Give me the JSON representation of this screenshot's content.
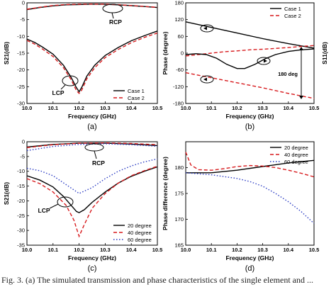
{
  "chart_data": [
    {
      "id": "a",
      "type": "line",
      "panel_label": "(a)",
      "xlabel": "Frequency (GHz)",
      "ylabel": "S21(dB)",
      "xlim": [
        10.0,
        10.5
      ],
      "ylim": [
        -30,
        0
      ],
      "xticks": [
        10.0,
        10.1,
        10.2,
        10.3,
        10.4,
        10.5
      ],
      "xtick_labels": [
        "10.0",
        "10.1",
        "10.2",
        "10.3",
        "10.4",
        "10.5"
      ],
      "yticks": [
        -30,
        -25,
        -20,
        -15,
        -10,
        -5,
        0
      ],
      "ytick_labels": [
        "-30",
        "-25",
        "-20",
        "-15",
        "-10",
        "-5",
        "0"
      ],
      "legend": {
        "position": "bottom-right"
      },
      "annotations": [
        "RCP",
        "LCP"
      ],
      "series": [
        {
          "name": "Case 1",
          "color": "#000000",
          "dash": "solid",
          "group": "RCP",
          "x": [
            10.0,
            10.05,
            10.1,
            10.15,
            10.2,
            10.25,
            10.3,
            10.35,
            10.4,
            10.45,
            10.5
          ],
          "y": [
            -2.0,
            -1.4,
            -0.9,
            -0.6,
            -0.5,
            -0.4,
            -0.45,
            -0.6,
            -0.85,
            -1.1,
            -1.4
          ]
        },
        {
          "name": "Case 2",
          "color": "#d7191c",
          "dash": "dash",
          "group": "RCP",
          "x": [
            10.0,
            10.05,
            10.1,
            10.15,
            10.2,
            10.25,
            10.3,
            10.35,
            10.4,
            10.45,
            10.5
          ],
          "y": [
            -1.9,
            -1.3,
            -0.8,
            -0.5,
            -0.4,
            -0.35,
            -0.4,
            -0.55,
            -0.8,
            -1.05,
            -1.35
          ]
        },
        {
          "name": "Case 1",
          "color": "#000000",
          "dash": "solid",
          "group": "LCP",
          "x": [
            10.0,
            10.03,
            10.06,
            10.1,
            10.14,
            10.17,
            10.19,
            10.2,
            10.21,
            10.23,
            10.26,
            10.3,
            10.35,
            10.4,
            10.45,
            10.5
          ],
          "y": [
            -10.8,
            -11.8,
            -13.2,
            -15.3,
            -18.6,
            -22.3,
            -25.3,
            -26.5,
            -25.2,
            -21.8,
            -18.6,
            -15.7,
            -13.3,
            -11.3,
            -9.8,
            -8.4
          ]
        },
        {
          "name": "Case 2",
          "color": "#d7191c",
          "dash": "dash",
          "group": "LCP",
          "x": [
            10.0,
            10.03,
            10.06,
            10.1,
            10.14,
            10.17,
            10.19,
            10.2,
            10.21,
            10.23,
            10.26,
            10.3,
            10.35,
            10.4,
            10.45,
            10.5
          ],
          "y": [
            -11.2,
            -12.3,
            -13.8,
            -16.0,
            -19.3,
            -23.0,
            -26.2,
            -27.0,
            -26.0,
            -22.6,
            -19.3,
            -16.3,
            -13.9,
            -11.9,
            -10.3,
            -9.0
          ]
        }
      ]
    },
    {
      "id": "b",
      "type": "line",
      "panel_label": "(b)",
      "xlabel": "Frequency (GHz)",
      "ylabel": "Phase (degree)",
      "ylabel_right": "S11(dB)",
      "xlim": [
        10.0,
        10.5
      ],
      "ylim": [
        -180,
        180
      ],
      "xticks": [
        10.0,
        10.1,
        10.2,
        10.3,
        10.4,
        10.5
      ],
      "xtick_labels": [
        "10.0",
        "10.1",
        "10.2",
        "10.3",
        "10.4",
        "10.5"
      ],
      "yticks": [
        -180,
        -120,
        -60,
        0,
        60,
        120,
        180
      ],
      "ytick_labels": [
        "-180",
        "-120",
        "-60",
        "0",
        "60",
        "120",
        "180"
      ],
      "legend": {
        "position": "top-right"
      },
      "annotations": [
        "180 deg"
      ],
      "series": [
        {
          "name": "Case 1",
          "color": "#000000",
          "dash": "solid",
          "group": "upper phase",
          "x": [
            10.0,
            10.1,
            10.2,
            10.3,
            10.4,
            10.5
          ],
          "y": [
            112,
            92,
            72,
            52,
            34,
            18
          ]
        },
        {
          "name": "Case 2",
          "color": "#d7191c",
          "dash": "dash",
          "group": "upper phase",
          "x": [
            10.0,
            10.05,
            10.1,
            10.15,
            10.2,
            10.25,
            10.3,
            10.35,
            10.4,
            10.45,
            10.5
          ],
          "y": [
            -10,
            -5,
            0,
            5,
            8,
            12,
            14,
            17,
            20,
            24,
            27
          ]
        },
        {
          "name": "Case 1",
          "color": "#000000",
          "dash": "solid",
          "group": "S11",
          "x": [
            10.0,
            10.04,
            10.08,
            10.12,
            10.16,
            10.2,
            10.23,
            10.27,
            10.31,
            10.35,
            10.4,
            10.45,
            10.5
          ],
          "y": [
            -5,
            -2,
            -5,
            -18,
            -40,
            -55,
            -55,
            -40,
            -20,
            -5,
            6,
            12,
            15
          ]
        },
        {
          "name": "Case 2",
          "color": "#d7191c",
          "dash": "dash",
          "group": "lower phase",
          "x": [
            10.0,
            10.1,
            10.2,
            10.3,
            10.4,
            10.5
          ],
          "y": [
            -70,
            -88,
            -106,
            -124,
            -144,
            -162
          ]
        }
      ]
    },
    {
      "id": "c",
      "type": "line",
      "panel_label": "(c)",
      "xlabel": "Frequency (GHz)",
      "ylabel": "S21(dB)",
      "xlim": [
        10.0,
        10.5
      ],
      "ylim": [
        -35,
        0
      ],
      "xticks": [
        10.0,
        10.1,
        10.2,
        10.3,
        10.4,
        10.5
      ],
      "xtick_labels": [
        "10.0",
        "10.1",
        "10.2",
        "10.3",
        "10.4",
        "10.5"
      ],
      "yticks": [
        -35,
        -30,
        -25,
        -20,
        -15,
        -10,
        -5,
        0
      ],
      "ytick_labels": [
        "-35",
        "-30",
        "-25",
        "-20",
        "-15",
        "-10",
        "-5",
        "0"
      ],
      "legend": {
        "position": "bottom-right"
      },
      "annotations": [
        "RCP",
        "LCP"
      ],
      "series": [
        {
          "name": "20 degree",
          "color": "#000000",
          "dash": "solid",
          "group": "RCP",
          "x": [
            10.0,
            10.1,
            10.2,
            10.3,
            10.4,
            10.5
          ],
          "y": [
            -1.8,
            -0.9,
            -0.5,
            -0.5,
            -0.8,
            -1.3
          ]
        },
        {
          "name": "40 degree",
          "color": "#d7191c",
          "dash": "dash",
          "group": "RCP",
          "x": [
            10.0,
            10.1,
            10.2,
            10.3,
            10.4,
            10.5
          ],
          "y": [
            -2.0,
            -1.0,
            -0.5,
            -0.4,
            -0.6,
            -1.0
          ]
        },
        {
          "name": "60 degree",
          "color": "#2b3cc4",
          "dash": "dot",
          "group": "RCP",
          "x": [
            10.0,
            10.1,
            10.2,
            10.3,
            10.4,
            10.5
          ],
          "y": [
            -3.0,
            -1.6,
            -0.9,
            -0.7,
            -1.0,
            -1.5
          ]
        },
        {
          "name": "20 degree",
          "color": "#000000",
          "dash": "solid",
          "group": "LCP",
          "x": [
            10.0,
            10.05,
            10.1,
            10.14,
            10.17,
            10.19,
            10.2,
            10.22,
            10.25,
            10.3,
            10.35,
            10.4,
            10.45,
            10.5
          ],
          "y": [
            -11.5,
            -13.0,
            -15.3,
            -18.5,
            -21.6,
            -23.6,
            -24.0,
            -23.0,
            -20.5,
            -17.0,
            -14.0,
            -11.7,
            -10.0,
            -8.5
          ]
        },
        {
          "name": "40 degree",
          "color": "#d7191c",
          "dash": "dash",
          "group": "LCP",
          "x": [
            10.0,
            10.05,
            10.1,
            10.15,
            10.18,
            10.2,
            10.22,
            10.25,
            10.3,
            10.35,
            10.4,
            10.45,
            10.5
          ],
          "y": [
            -12.5,
            -14.2,
            -17.0,
            -21.5,
            -26.5,
            -32.0,
            -28.0,
            -22.5,
            -17.5,
            -14.0,
            -11.5,
            -9.8,
            -8.3
          ]
        },
        {
          "name": "60 degree",
          "color": "#2b3cc4",
          "dash": "dot",
          "group": "LCP",
          "x": [
            10.0,
            10.05,
            10.1,
            10.15,
            10.2,
            10.25,
            10.3,
            10.35,
            10.4,
            10.45,
            10.5
          ],
          "y": [
            -9.0,
            -9.8,
            -11.5,
            -14.5,
            -17.5,
            -15.5,
            -12.5,
            -10.0,
            -8.2,
            -6.8,
            -5.8
          ]
        }
      ]
    },
    {
      "id": "d",
      "type": "line",
      "panel_label": "(d)",
      "xlabel": "Frequency (GHz)",
      "ylabel": "Phase difference (degree)",
      "xlim": [
        10.0,
        10.5
      ],
      "ylim": [
        165,
        185
      ],
      "xticks": [
        10.0,
        10.1,
        10.2,
        10.3,
        10.4,
        10.5
      ],
      "xtick_labels": [
        "10.0",
        "10.1",
        "10.2",
        "10.3",
        "10.4",
        "10.5"
      ],
      "yticks": [
        165,
        170,
        175,
        180
      ],
      "ytick_labels": [
        "165",
        "170",
        "175",
        "180"
      ],
      "legend": {
        "position": "top-right"
      },
      "series": [
        {
          "name": "20 degree",
          "color": "#000000",
          "dash": "solid",
          "x": [
            10.0,
            10.1,
            10.2,
            10.3,
            10.4,
            10.5
          ],
          "y": [
            179.0,
            179.0,
            179.5,
            180.2,
            180.9,
            181.4
          ]
        },
        {
          "name": "40 degree",
          "color": "#d7191c",
          "dash": "dash",
          "x": [
            10.0,
            10.02,
            10.05,
            10.1,
            10.15,
            10.2,
            10.25,
            10.3,
            10.35,
            10.4,
            10.45,
            10.5
          ],
          "y": [
            183.0,
            180.5,
            179.6,
            179.5,
            179.8,
            180.2,
            180.4,
            180.3,
            180.0,
            179.5,
            178.9,
            178.2
          ]
        },
        {
          "name": "60 degree",
          "color": "#2b3cc4",
          "dash": "dot",
          "x": [
            10.0,
            10.1,
            10.2,
            10.25,
            10.3,
            10.35,
            10.4,
            10.45,
            10.5
          ],
          "y": [
            179.0,
            178.6,
            177.9,
            177.3,
            176.4,
            175.0,
            173.4,
            171.5,
            169.2
          ]
        }
      ]
    }
  ],
  "caption": "Fig. 3. (a) The simulated transmission and phase characteristics of the single element and ..."
}
